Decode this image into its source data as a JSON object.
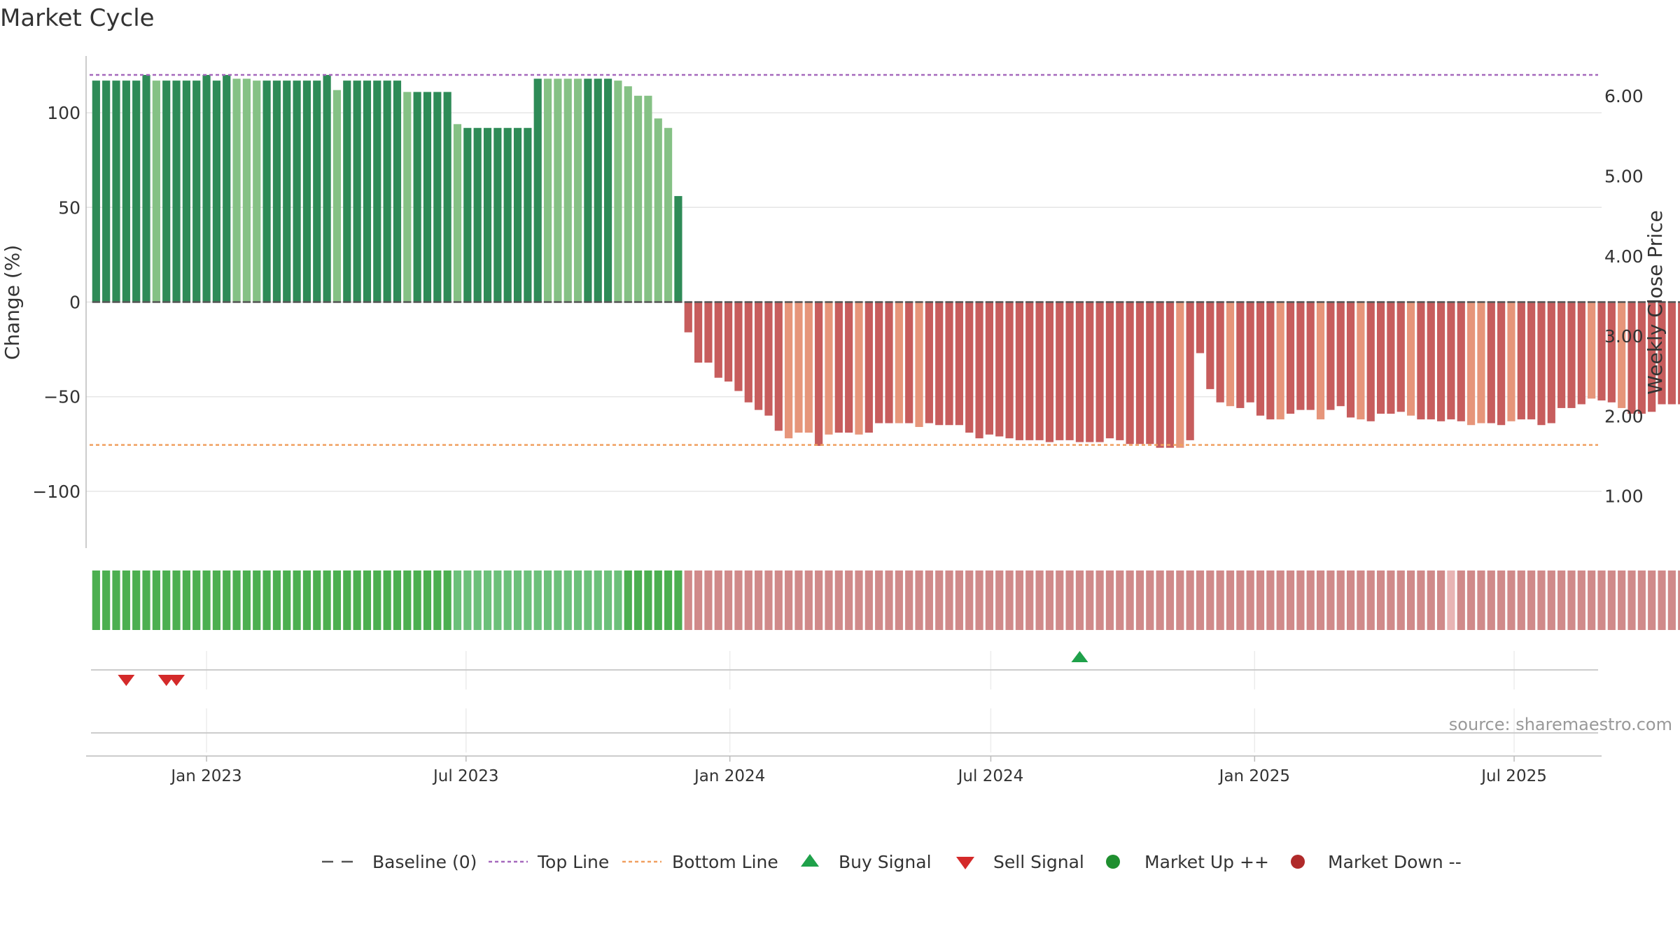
{
  "title": "Market Cycle",
  "source": "source: sharemaestro.com",
  "colors": {
    "up_strong": "#2e8b57",
    "up_weak": "#85c185",
    "down_strong": "#c75d5d",
    "down_weak": "#e6957a",
    "top_line": "#a569bd",
    "bottom_line": "#f0a060",
    "baseline": "#555555",
    "buy": "#1fa14a",
    "sell": "#d42a2a",
    "market_up": "#1f8f2f",
    "market_down": "#b02a2a",
    "band_up_strong": "#4caf50",
    "band_up_weak": "#6cc07a",
    "band_down_strong": "#d08a8a",
    "band_down_weak": "#e8b4b4"
  },
  "chart_data": {
    "type": "bar",
    "title": "Market Cycle",
    "ylabel": "Change (%)",
    "y2label": "Weekly Close Price",
    "ylim": [
      -130,
      130
    ],
    "y2lim": [
      0.35,
      6.5
    ],
    "yticks": [
      100,
      50,
      0,
      -50,
      -100
    ],
    "ytick_labels": [
      "100",
      "50",
      "0",
      "−50",
      "−100"
    ],
    "y2ticks": [
      6.0,
      5.0,
      4.0,
      3.0,
      2.0,
      1.0
    ],
    "y2tick_labels": [
      "6.00",
      "5.00",
      "4.00",
      "3.00",
      "2.00",
      "1.00"
    ],
    "x_range": [
      "2022-10-09",
      "2025-08-31"
    ],
    "xticks": [
      "2023-01-01",
      "2023-07-01",
      "2024-01-01",
      "2024-07-01",
      "2025-01-01",
      "2025-07-01"
    ],
    "xtick_labels": [
      "Jan 2023",
      "Jul 2023",
      "Jan 2024",
      "Jul 2024",
      "Jan 2025",
      "Jul 2025"
    ],
    "first_week": "2022-10-16",
    "week_step_days": 7,
    "top_line": 120,
    "bottom_line": -75.5,
    "baseline": 0,
    "values": [
      117,
      117,
      117,
      117,
      117,
      120,
      117,
      117,
      117,
      117,
      117,
      120,
      117,
      120,
      118,
      118,
      117,
      117,
      117,
      117,
      117,
      117,
      117,
      120,
      112,
      117,
      117,
      117,
      117,
      117,
      117,
      111,
      111,
      111,
      111,
      111,
      94,
      92,
      92,
      92,
      92,
      92,
      92,
      92,
      118,
      118,
      118,
      118,
      118,
      118,
      118,
      118,
      117,
      114,
      109,
      109,
      97,
      92,
      56,
      -16,
      -32,
      -32,
      -40,
      -42,
      -47,
      -53,
      -57,
      -60,
      -68,
      -72,
      -69,
      -69,
      -76,
      -70,
      -69,
      -69,
      -70,
      -69,
      -64,
      -64,
      -64,
      -64,
      -66,
      -64,
      -65,
      -65,
      -65,
      -69,
      -72,
      -70,
      -71,
      -72,
      -73,
      -73,
      -73,
      -74,
      -73,
      -73,
      -74,
      -74,
      -74,
      -72,
      -73,
      -75,
      -75,
      -75,
      -77,
      -77,
      -77,
      -73,
      -27,
      -46,
      -53,
      -55,
      -56,
      -53,
      -60,
      -62,
      -62,
      -59,
      -57,
      -57,
      -62,
      -57,
      -55,
      -61,
      -62,
      -63,
      -59,
      -59,
      -58,
      -60,
      -62,
      -62,
      -63,
      -62,
      -63,
      -65,
      -64,
      -64,
      -65,
      -63,
      -62,
      -62,
      -65,
      -64,
      -56,
      -56,
      -54,
      -51,
      -52,
      -53,
      -56,
      -59,
      -59,
      -58,
      -54,
      -54,
      -54,
      -44
    ],
    "strength": "SSSSSSWSSSSSSSWWWSSSSSSSWSSSSSSWSSSSWSSSSSSSSWWWWSSSWWWWWWSSSSSSSSSSSWWWSWSSWSSSWSWSSSSSSSSSSSSSSSSSSSSSSSSSWSSSSWSSSSWSSSWSSSWSSSSWSSSSSWWSSWSSSSSSSWSSWSSSS",
    "band": "SSSSSSSSSSSSSSSSSSSSSSSSSSSSSSSSSSSSWWWWWWWWWWWWWWWWWSSSSSSSSSSSSSSSSSSSSSSSSSSSSSSSSSSSSSSSSSSSSSSSSSSSSSSSSSSSSSSSSSSSSSSSSSSSSSSSSSSWSSSSSSSSSSSSSSSSSSSSSSSS",
    "weekly_close": [],
    "buy_signals": [
      "2024-09-01"
    ],
    "sell_signals": [
      "2022-11-06",
      "2022-12-04",
      "2022-12-11"
    ],
    "legend_position": "bottom-center",
    "grid": true
  },
  "legend": [
    {
      "id": "baseline",
      "label": "Baseline (0)",
      "symbol": "dash-long"
    },
    {
      "id": "top",
      "label": "Top Line",
      "symbol": "dash-purple"
    },
    {
      "id": "bottom",
      "label": "Bottom Line",
      "symbol": "dash-orange"
    },
    {
      "id": "buy",
      "label": "Buy Signal",
      "symbol": "triangle-up-icon"
    },
    {
      "id": "sell",
      "label": "Sell Signal",
      "symbol": "triangle-down-icon"
    },
    {
      "id": "mup",
      "label": "Market Up ++",
      "symbol": "circle-icon"
    },
    {
      "id": "mdown",
      "label": "Market Down --",
      "symbol": "circle-icon"
    }
  ]
}
